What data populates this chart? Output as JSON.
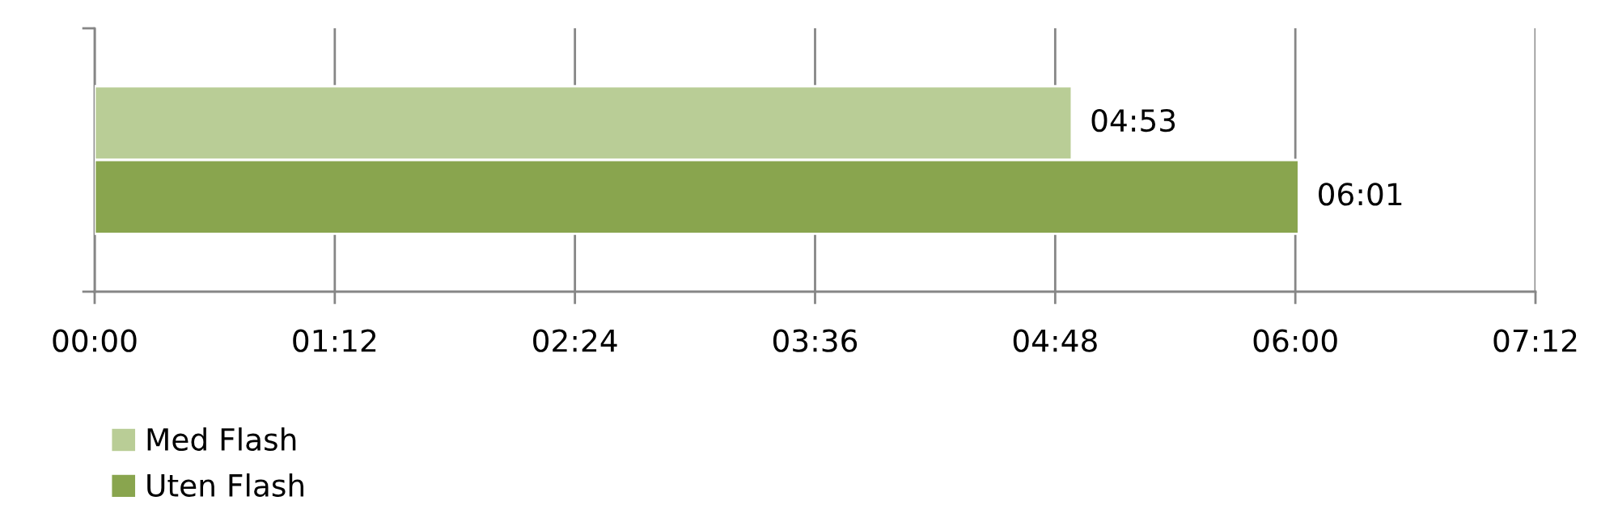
{
  "chart_data": {
    "type": "bar",
    "orientation": "horizontal",
    "categories": [
      null
    ],
    "series": [
      {
        "name": "Med Flash",
        "color": "#b9cd96",
        "values": [
          4.883
        ],
        "value_labels": [
          "04:53"
        ]
      },
      {
        "name": "Uten Flash",
        "color": "#89a54e",
        "values": [
          6.017
        ],
        "value_labels": [
          "06:01"
        ]
      }
    ],
    "xlim": [
      0,
      7.2
    ],
    "xticks": [
      {
        "value": 0,
        "label": "00:00"
      },
      {
        "value": 1.2,
        "label": "01:12"
      },
      {
        "value": 2.4,
        "label": "02:24"
      },
      {
        "value": 3.6,
        "label": "03:36"
      },
      {
        "value": 4.8,
        "label": "04:48"
      },
      {
        "value": 6.0,
        "label": "06:00"
      },
      {
        "value": 7.2,
        "label": "07:12"
      }
    ],
    "grid": "x",
    "legend": "bottom left",
    "tick_labels": "x"
  }
}
